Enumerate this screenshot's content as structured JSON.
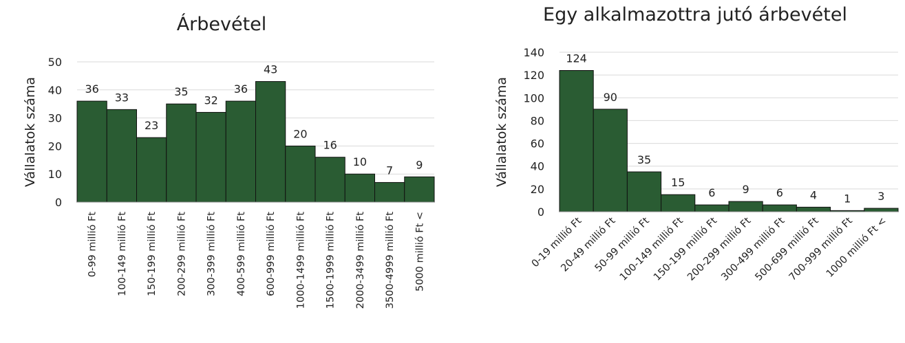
{
  "chart_data": [
    {
      "type": "bar",
      "title": "Árbevétel",
      "xlabel": "",
      "ylabel": "Vállalatok száma",
      "ylim": [
        0,
        50
      ],
      "yticks": [
        0,
        10,
        20,
        30,
        40,
        50
      ],
      "grid": true,
      "bar_color": "#2a5c33",
      "categories": [
        "0-99 millió Ft",
        "100-149 millió Ft",
        "150-199 millió Ft",
        "200-299 millió Ft",
        "300-399 millió Ft",
        "400-599 millió Ft",
        "600-999 millió Ft",
        "1000-1499 millió Ft",
        "1500-1999 millió Ft",
        "2000-3499 millió Ft",
        "3500-4999 millió Ft",
        "5000 millió Ft <"
      ],
      "values": [
        36,
        33,
        23,
        35,
        32,
        36,
        43,
        20,
        16,
        10,
        7,
        9
      ]
    },
    {
      "type": "bar",
      "title": "Egy alkalmazottra jutó árbevétel",
      "xlabel": "",
      "ylabel": "Vállalatok száma",
      "ylim": [
        0,
        140
      ],
      "yticks": [
        0,
        20,
        40,
        60,
        80,
        100,
        120,
        140
      ],
      "grid": true,
      "bar_color": "#2a5c33",
      "categories": [
        "0-19 millió Ft",
        "20-49 millió Ft",
        "50-99 millió Ft",
        "100-149 millió Ft",
        "150-199 millió Ft",
        "200-299 millió Ft",
        "300-499 millió Ft",
        "500-699 millió Ft",
        "700-999 millió Ft",
        "1000 millió Ft <"
      ],
      "values": [
        124,
        90,
        35,
        15,
        6,
        9,
        6,
        4,
        1,
        3
      ]
    }
  ]
}
